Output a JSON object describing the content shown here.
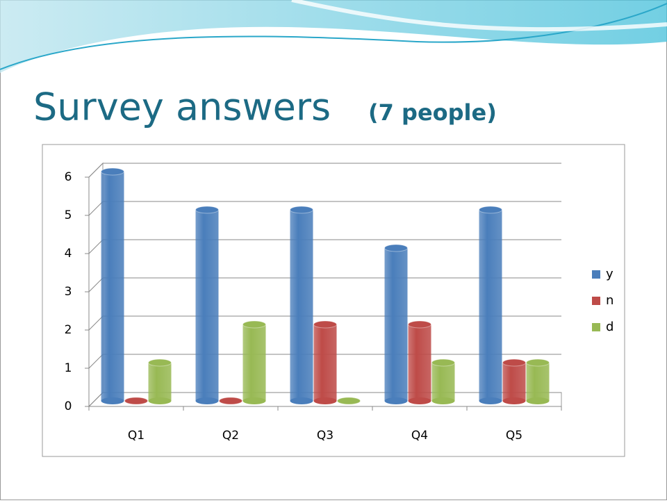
{
  "chart_data": {
    "type": "bar3d",
    "title": "Survey answers",
    "subtitle": "(7 people)",
    "categories": [
      "Q1",
      "Q2",
      "Q3",
      "Q4",
      "Q5"
    ],
    "series": [
      {
        "name": "y",
        "color": "#4a7ebb",
        "values": [
          6,
          5,
          5,
          4,
          5
        ]
      },
      {
        "name": "n",
        "color": "#be4b48",
        "values": [
          0,
          0,
          2,
          2,
          1
        ]
      },
      {
        "name": "d",
        "color": "#98b954",
        "values": [
          1,
          2,
          0,
          1,
          1
        ]
      }
    ],
    "ylim": [
      0,
      6
    ],
    "yticks": [
      0,
      1,
      2,
      3,
      4,
      5,
      6
    ],
    "grid": true,
    "legend": "right"
  }
}
